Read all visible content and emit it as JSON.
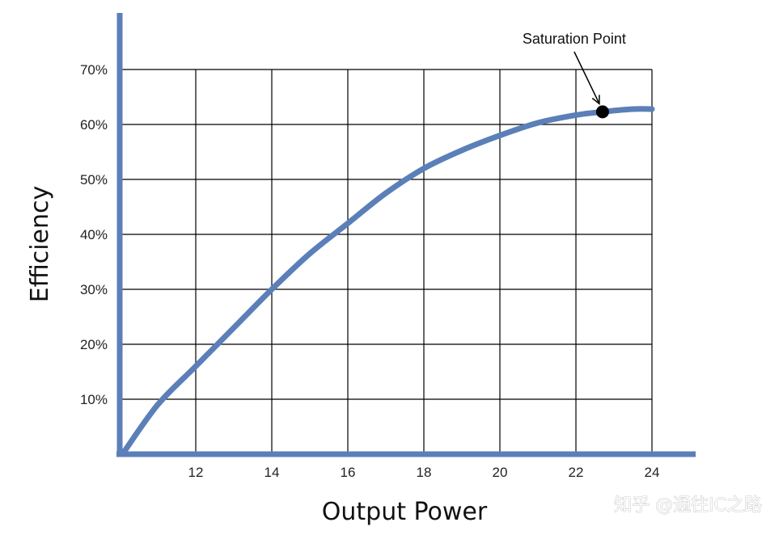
{
  "chart_data": {
    "type": "line",
    "xlabel": "Output Power",
    "ylabel": "Efficiency",
    "xlim": [
      10,
      24
    ],
    "ylim": [
      0,
      70
    ],
    "x_ticks": [
      {
        "value": 12,
        "label": "12"
      },
      {
        "value": 14,
        "label": "14"
      },
      {
        "value": 16,
        "label": "16"
      },
      {
        "value": 18,
        "label": "18"
      },
      {
        "value": 20,
        "label": "20"
      },
      {
        "value": 22,
        "label": "22"
      },
      {
        "value": 24,
        "label": "24"
      }
    ],
    "y_ticks": [
      {
        "value": 10,
        "label": "10%"
      },
      {
        "value": 20,
        "label": "20%"
      },
      {
        "value": 30,
        "label": "30%"
      },
      {
        "value": 40,
        "label": "40%"
      },
      {
        "value": 50,
        "label": "50%"
      },
      {
        "value": 60,
        "label": "60%"
      },
      {
        "value": 70,
        "label": "70%"
      }
    ],
    "grid": true,
    "series": [
      {
        "x": [
          10.1,
          11,
          12,
          13,
          14,
          15,
          16,
          17,
          18,
          19,
          20,
          21,
          22,
          22.7,
          23.5,
          24
        ],
        "y": [
          0.3,
          9,
          16,
          23,
          30,
          36.5,
          42,
          47.5,
          52,
          55.3,
          58,
          60.3,
          61.7,
          62.3,
          62.8,
          62.8
        ],
        "color": "#5b7fb8"
      }
    ],
    "annotations": [
      {
        "text": "Saturation Point",
        "x": 22.7,
        "y": 62.3
      }
    ]
  },
  "watermark": "知乎 @通往IC之路"
}
